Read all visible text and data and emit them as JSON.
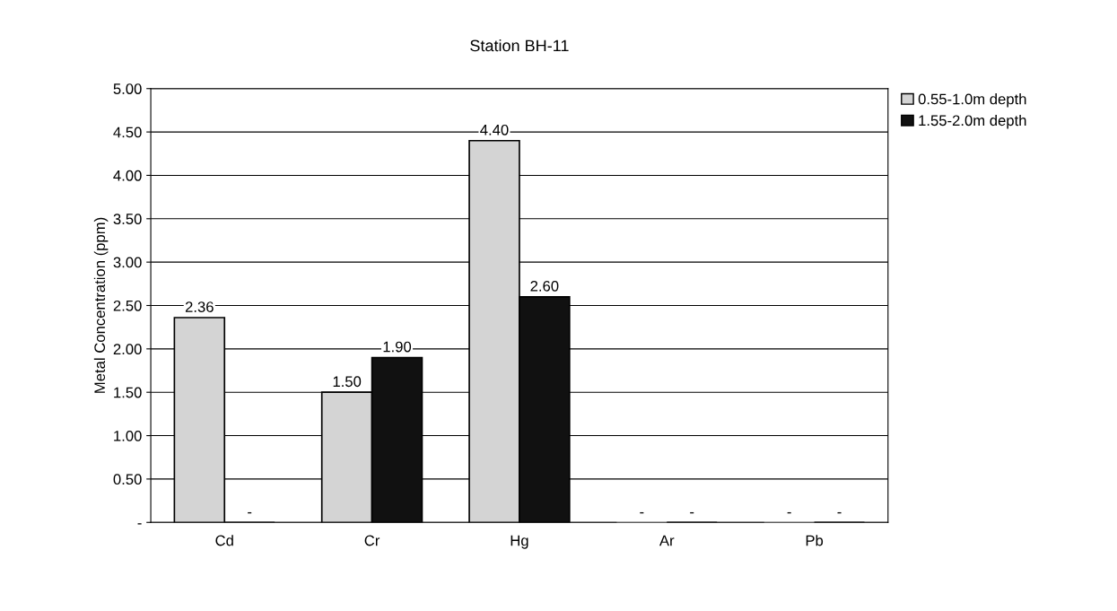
{
  "chart_data": {
    "type": "bar",
    "title": "Station BH-11",
    "ylabel": "Metal Concentration (ppm)",
    "categories": [
      "Cd",
      "Cr",
      "Hg",
      "Ar",
      "Pb"
    ],
    "series": [
      {
        "name": "0.55-1.0m depth",
        "color": "#d4d4d4",
        "values": [
          2.36,
          1.5,
          4.4,
          0,
          0
        ],
        "value_labels": [
          "2.36",
          "1.50",
          "4.40",
          "-",
          "-"
        ]
      },
      {
        "name": "1.55-2.0m depth",
        "color": "#111111",
        "values": [
          0,
          1.9,
          2.6,
          0,
          0
        ],
        "value_labels": [
          "-",
          "1.90",
          "2.60",
          "-",
          "-"
        ]
      }
    ],
    "ylim": [
      0,
      5.0
    ],
    "yticks": [
      {
        "value": 0,
        "label": "-"
      },
      {
        "value": 0.5,
        "label": "0.50"
      },
      {
        "value": 1.0,
        "label": "1.00"
      },
      {
        "value": 1.5,
        "label": "1.50"
      },
      {
        "value": 2.0,
        "label": "2.00"
      },
      {
        "value": 2.5,
        "label": "2.50"
      },
      {
        "value": 3.0,
        "label": "3.00"
      },
      {
        "value": 3.5,
        "label": "3.50"
      },
      {
        "value": 4.0,
        "label": "4.00"
      },
      {
        "value": 4.5,
        "label": "4.50"
      },
      {
        "value": 5.0,
        "label": "5.00"
      }
    ],
    "grid": "y",
    "legend": "top right"
  }
}
